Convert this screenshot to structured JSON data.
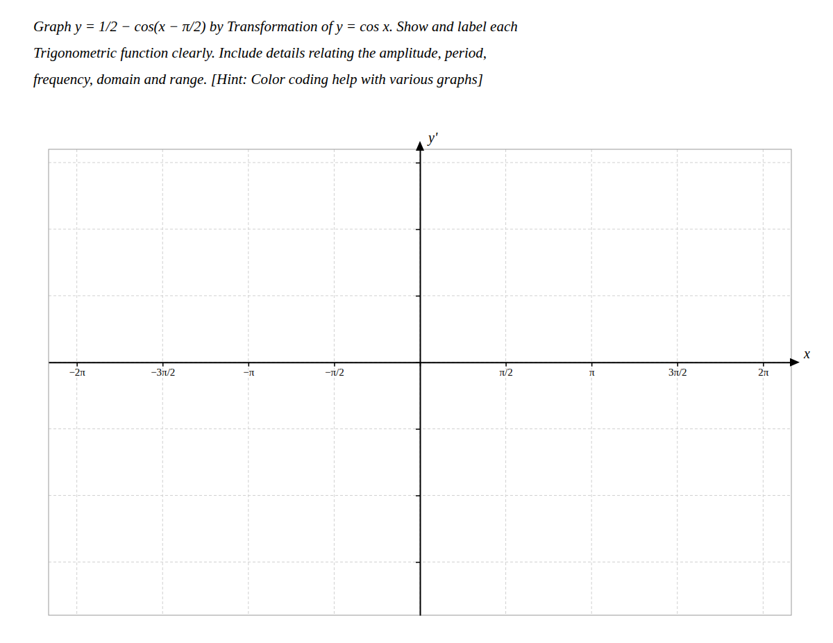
{
  "chart_data": {
    "type": "blank",
    "title": "Graph y = 1/2 − cos(x − π/2) by Transformation of y = cos x. Show and label each",
    "subtitle": [
      "Trigonometric function clearly. Include details relating the amplitude, period,",
      "frequency, domain and range. [Hint: Color coding help with various graphs]"
    ],
    "x_label": "x",
    "y_label": "y'",
    "xlim": [
      -6.8,
      6.8
    ],
    "ylim": [
      -3.8,
      3.2
    ],
    "xticks": [
      {
        "value": -6.283185307,
        "label": "−2π"
      },
      {
        "value": -4.71238898,
        "label": "−3π/2"
      },
      {
        "value": -3.14159265,
        "label": "−π"
      },
      {
        "value": -1.5707963,
        "label": "−π/2"
      },
      {
        "value": 0,
        "label": null
      },
      {
        "value": 1.5707963,
        "label": "π/2"
      },
      {
        "value": 3.14159265,
        "label": "π"
      },
      {
        "value": 4.71238898,
        "label": "3π/2"
      },
      {
        "value": 6.283185307,
        "label": "2π"
      }
    ],
    "yticks": [
      -3,
      -2,
      -1,
      0,
      1,
      2,
      3
    ],
    "grid": true,
    "tick_labels": "x"
  }
}
